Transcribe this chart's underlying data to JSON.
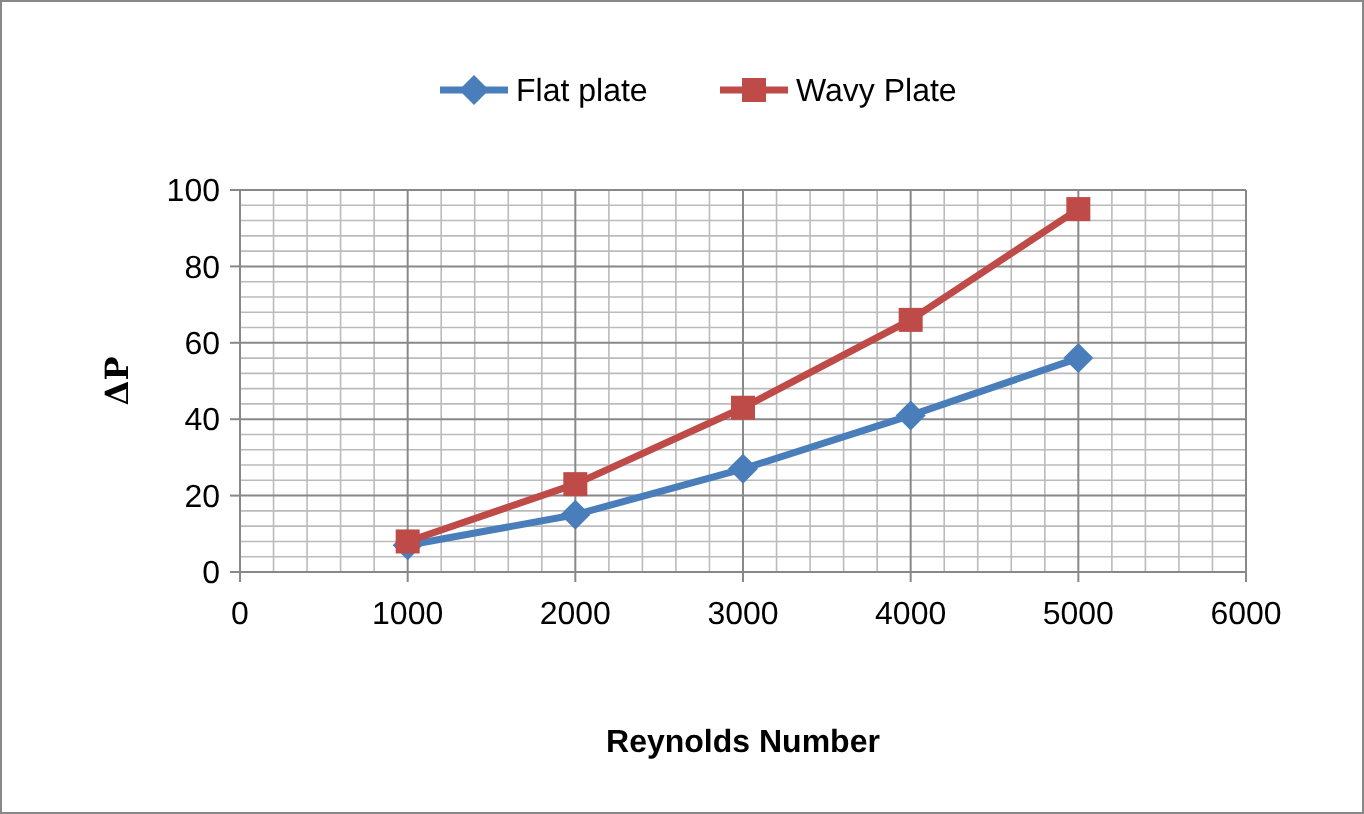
{
  "chart_data": {
    "type": "line",
    "xlabel": "Reynolds Number",
    "ylabel": "ΔP",
    "x": [
      1000,
      2000,
      3000,
      4000,
      5000
    ],
    "series": [
      {
        "name": "Flat plate",
        "color": "#4a7ebb",
        "marker": "diamond",
        "values": [
          7,
          15,
          27,
          41,
          56
        ]
      },
      {
        "name": "Wavy Plate",
        "color": "#be4b48",
        "marker": "square",
        "values": [
          8,
          23,
          43,
          66,
          95
        ]
      }
    ],
    "xlim": [
      0,
      6000
    ],
    "xticks": [
      0,
      1000,
      2000,
      3000,
      4000,
      5000,
      6000
    ],
    "ylim": [
      0,
      100
    ],
    "yticks": [
      0,
      20,
      40,
      60,
      80,
      100
    ],
    "grid": true,
    "legend": "top"
  }
}
